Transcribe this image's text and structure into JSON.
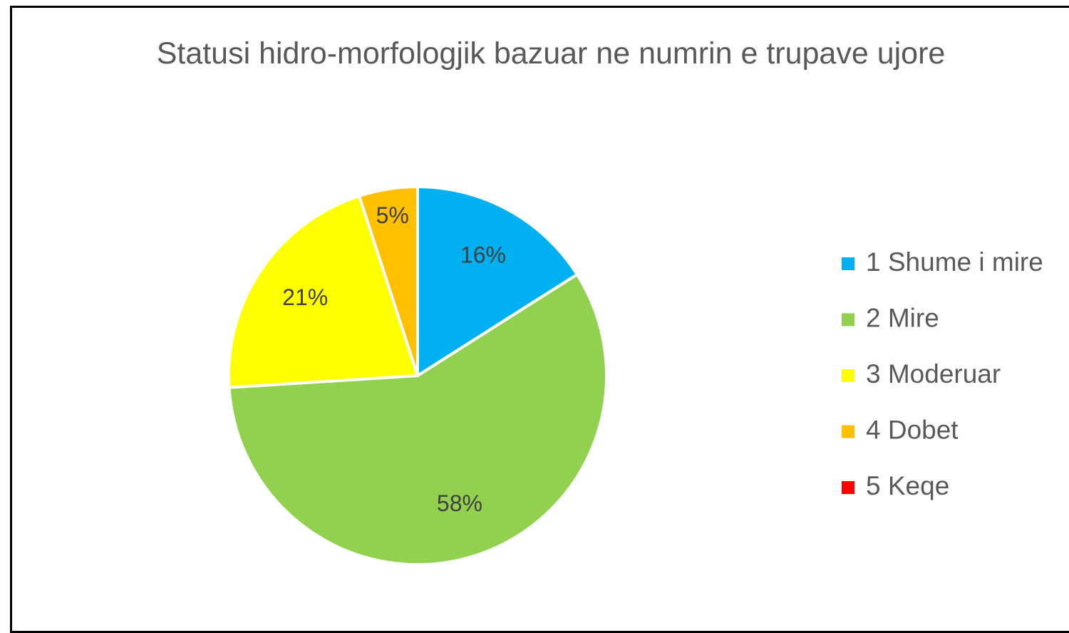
{
  "chart_data": {
    "type": "pie",
    "title": "Statusi hidro-morfologjik bazuar ne numrin e trupave ujore",
    "categories": [
      "1 Shume i mire",
      "2 Mire",
      "3 Moderuar",
      "4 Dobet",
      "5 Keqe"
    ],
    "values": [
      16,
      58,
      21,
      5,
      0
    ],
    "value_labels": [
      "16%",
      "58%",
      "21%",
      "5%",
      null
    ],
    "colors": [
      "#00b0f0",
      "#92d050",
      "#ffff00",
      "#ffc000",
      "#ff0000"
    ],
    "legend": "right"
  }
}
